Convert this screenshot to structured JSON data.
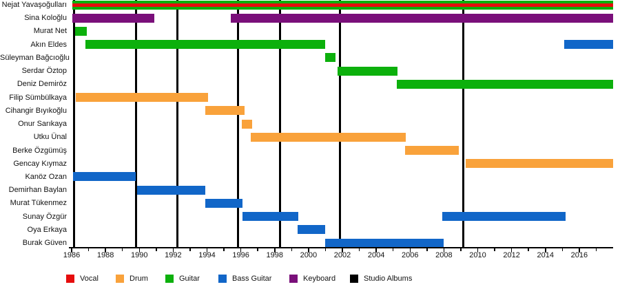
{
  "chart_data": {
    "type": "bar",
    "subtype": "member-timeline-gantt",
    "title": "",
    "x_axis": {
      "min": 1986,
      "max": 2018,
      "major_tick_years": [
        1986,
        1988,
        1990,
        1992,
        1994,
        1996,
        1998,
        2000,
        2002,
        2004,
        2006,
        2008,
        2010,
        2012,
        2014,
        2016
      ],
      "minor_tick_years": [
        1987,
        1989,
        1991,
        1993,
        1995,
        1997,
        1999,
        2001,
        2003,
        2005,
        2007,
        2009,
        2011,
        2013,
        2015,
        2017
      ]
    },
    "colors": {
      "vocal": "#e60d0d",
      "drum": "#f9a23b",
      "guitar": "#0cb00c",
      "bass": "#1166c8",
      "keyboard": "#7a0f7a",
      "albums": "#000000"
    },
    "legend": [
      {
        "role": "vocal",
        "label": "Vocal"
      },
      {
        "role": "drum",
        "label": "Drum"
      },
      {
        "role": "guitar",
        "label": "Guitar"
      },
      {
        "role": "bass",
        "label": "Bass Guitar"
      },
      {
        "role": "keyboard",
        "label": "Keyboard"
      },
      {
        "role": "albums",
        "label": "Studio Albums"
      }
    ],
    "album_line_years": [
      1986.15,
      1989.8,
      1992.25,
      1995.85,
      1998.3,
      2001.85,
      2009.15
    ],
    "rows": [
      {
        "name": "Nejat Yavaşoğulları",
        "bars": [
          {
            "start": 1986.05,
            "end": 2018,
            "role": "guitar",
            "overlay_role": "vocal"
          }
        ]
      },
      {
        "name": "Sina Koloğlu",
        "bars": [
          {
            "start": 1986.05,
            "end": 1990.9,
            "role": "keyboard"
          },
          {
            "start": 1995.4,
            "end": 2018,
            "role": "keyboard"
          }
        ]
      },
      {
        "name": "Murat Net",
        "bars": [
          {
            "start": 1986.2,
            "end": 1986.9,
            "role": "guitar"
          }
        ]
      },
      {
        "name": "Akın Eldes",
        "bars": [
          {
            "start": 1986.8,
            "end": 2001.0,
            "role": "guitar"
          },
          {
            "start": 2015.1,
            "end": 2018,
            "role": "bass"
          }
        ]
      },
      {
        "name": "Süleyman Bağcıoğlu",
        "bars": [
          {
            "start": 2001.0,
            "end": 2001.6,
            "role": "guitar"
          }
        ]
      },
      {
        "name": "Serdar Öztop",
        "bars": [
          {
            "start": 2001.7,
            "end": 2005.25,
            "role": "guitar"
          }
        ]
      },
      {
        "name": "Deniz Demiröz",
        "bars": [
          {
            "start": 2005.2,
            "end": 2018,
            "role": "guitar"
          }
        ]
      },
      {
        "name": "Filip Sümbülkaya",
        "bars": [
          {
            "start": 1986.25,
            "end": 1994.05,
            "role": "drum"
          }
        ]
      },
      {
        "name": "Cihangir Bıyıkoğlu",
        "bars": [
          {
            "start": 1993.9,
            "end": 1996.2,
            "role": "drum"
          }
        ]
      },
      {
        "name": "Onur Sarıkaya",
        "bars": [
          {
            "start": 1996.05,
            "end": 1996.65,
            "role": "drum"
          }
        ]
      },
      {
        "name": "Utku Ünal",
        "bars": [
          {
            "start": 1996.6,
            "end": 2005.75,
            "role": "drum"
          }
        ]
      },
      {
        "name": "Berke Özgümüş",
        "bars": [
          {
            "start": 2005.7,
            "end": 2008.9,
            "role": "drum"
          }
        ]
      },
      {
        "name": "Gencay Kıymaz",
        "bars": [
          {
            "start": 2009.3,
            "end": 2018,
            "role": "drum"
          }
        ]
      },
      {
        "name": "Kanöz Ozan",
        "bars": [
          {
            "start": 1986.1,
            "end": 1989.8,
            "role": "bass"
          }
        ]
      },
      {
        "name": "Demirhan Baylan",
        "bars": [
          {
            "start": 1989.85,
            "end": 1993.9,
            "role": "bass"
          }
        ]
      },
      {
        "name": "Murat Tükenmez",
        "bars": [
          {
            "start": 1993.9,
            "end": 1996.1,
            "role": "bass"
          }
        ]
      },
      {
        "name": "Sunay Özgür",
        "bars": [
          {
            "start": 1996.1,
            "end": 1999.4,
            "role": "bass"
          },
          {
            "start": 2007.9,
            "end": 2015.2,
            "role": "bass"
          }
        ]
      },
      {
        "name": "Oya Erkaya",
        "bars": [
          {
            "start": 1999.35,
            "end": 2001.0,
            "role": "bass"
          }
        ]
      },
      {
        "name": "Burak Güven",
        "bars": [
          {
            "start": 2001.0,
            "end": 2008.0,
            "role": "bass"
          }
        ]
      }
    ]
  }
}
